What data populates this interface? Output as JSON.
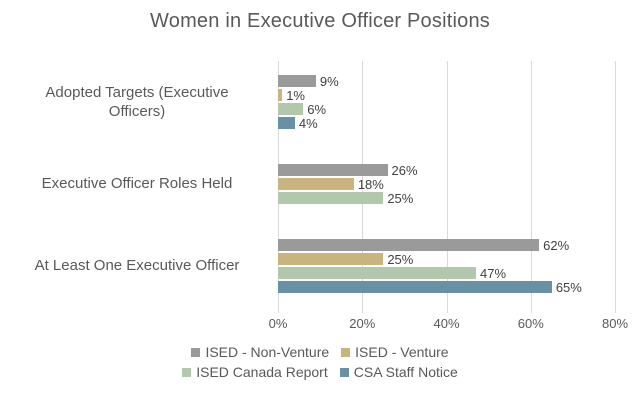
{
  "page": {
    "background": "#ffffff"
  },
  "chart_data": {
    "type": "bar",
    "orientation": "horizontal",
    "title": "Women in Executive Officer Positions",
    "categories": [
      "Adopted Targets (Executive Officers)",
      "Executive Officer Roles Held",
      "At Least One Executive Officer"
    ],
    "series": [
      {
        "name": "ISED - Non-Venture",
        "color": "#9a9a9a",
        "values": [
          9,
          26,
          62
        ]
      },
      {
        "name": "ISED - Venture",
        "color": "#c9b37e",
        "values": [
          1,
          18,
          25
        ]
      },
      {
        "name": "ISED Canada Report",
        "color": "#b2c8ac",
        "values": [
          6,
          25,
          47
        ]
      },
      {
        "name": "CSA Staff Notice",
        "color": "#6892a3",
        "values": [
          4,
          null,
          65
        ]
      }
    ],
    "xlim": [
      0,
      80
    ],
    "x_tick_labels": [
      "0%",
      "20%",
      "40%",
      "60%",
      "80%"
    ],
    "data_label_suffix": "%",
    "grid": true,
    "legend_position": "bottom",
    "legend_columns": 2,
    "colors": {
      "title_text": "#595959",
      "axis_text": "#595959",
      "data_label_text": "#404040",
      "gridline": "#d9d9d9",
      "background": "#ffffff"
    }
  }
}
